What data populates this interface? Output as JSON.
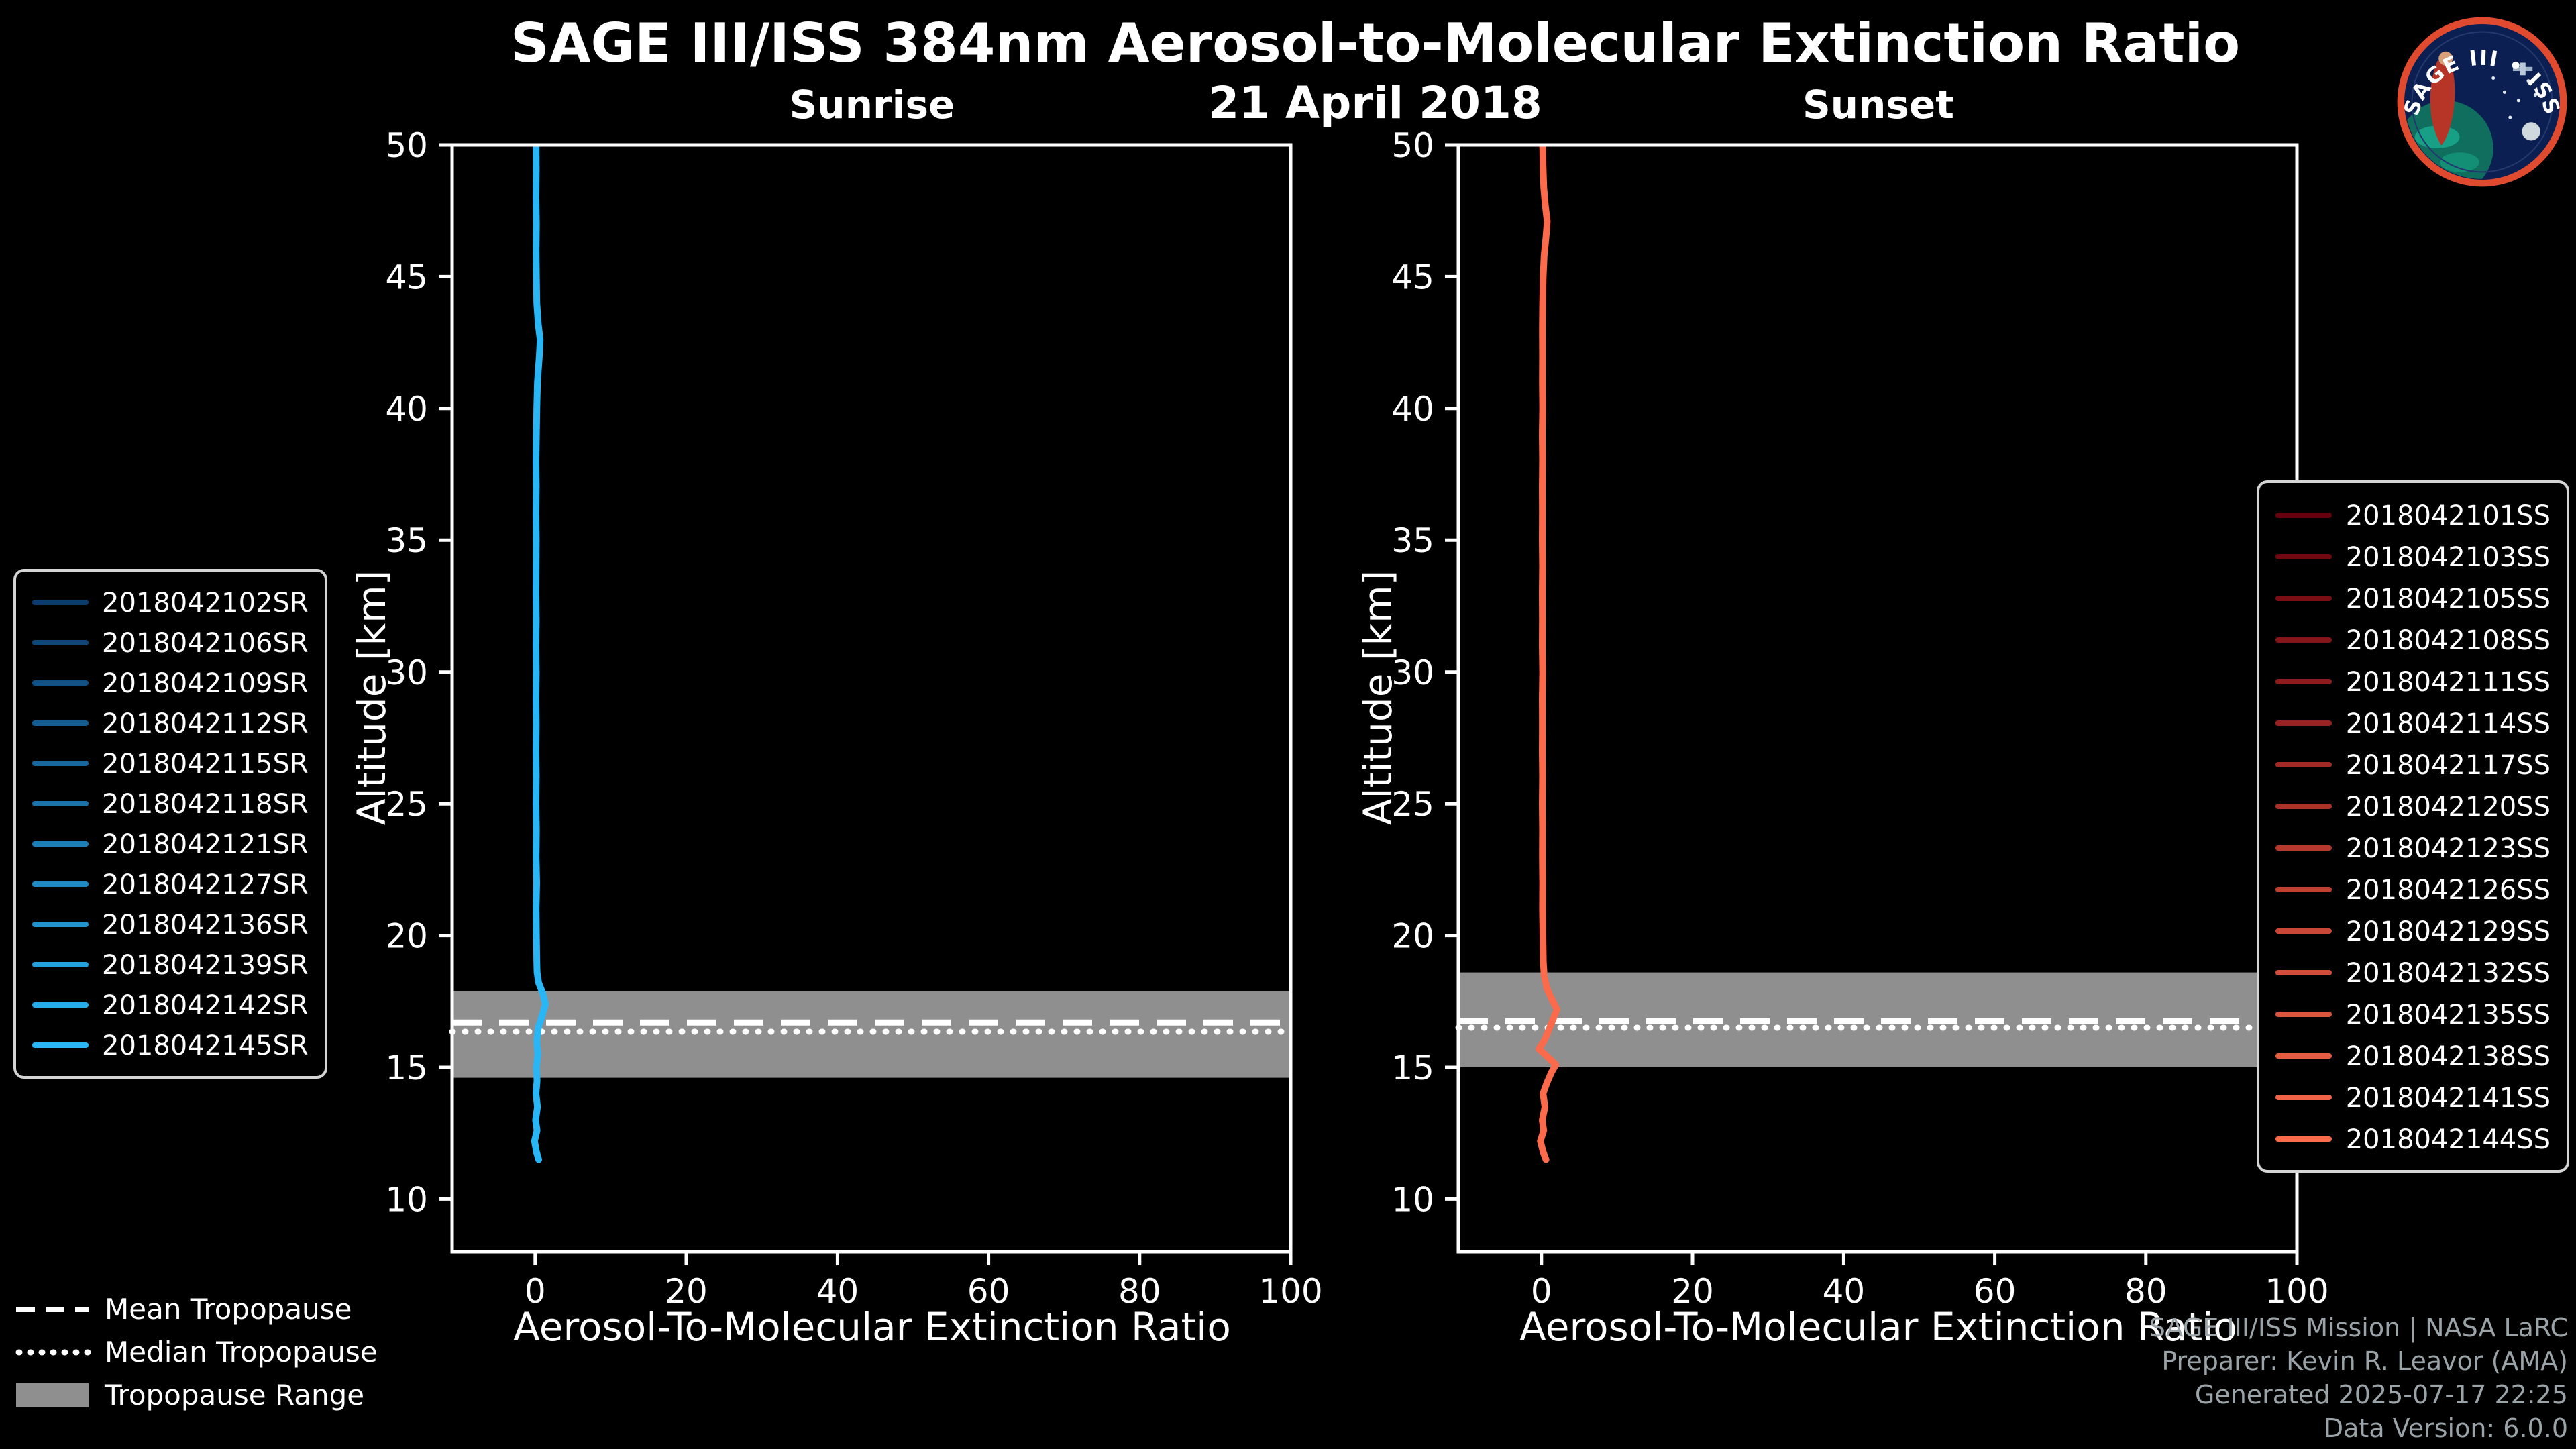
{
  "header": {
    "title": "SAGE III/ISS 384nm Aerosol-to-Molecular Extinction Ratio",
    "date": "21 April 2018"
  },
  "logo": {
    "text": "SAGE III • ISS"
  },
  "tropopause_legend": {
    "mean": "Mean Tropopause",
    "median": "Median Tropopause",
    "range": "Tropopause Range"
  },
  "footer": {
    "line1": "SAGE III/ISS Mission | NASA LaRC",
    "line2": "Preparer: Kevin R. Leavor (AMA)",
    "line3": "Generated 2025-07-17 22:25",
    "line4": "Data Version: 6.0.0"
  },
  "chart_data": [
    {
      "type": "line",
      "title": "Sunrise",
      "xlabel": "Aerosol-To-Molecular Extinction Ratio",
      "ylabel": "Altitude [km]",
      "xlim": [
        -11,
        100
      ],
      "ylim": [
        8,
        50
      ],
      "xticks": [
        0,
        20,
        40,
        60,
        80,
        100
      ],
      "yticks": [
        10,
        15,
        20,
        25,
        30,
        35,
        40,
        45,
        50
      ],
      "grid": false,
      "legend_position": "left-outside",
      "line_color": "#29b6f6",
      "tropopause": {
        "mean_km": 16.7,
        "median_km": 16.35,
        "range_km": [
          14.6,
          17.9
        ]
      },
      "legend": [
        {
          "label": "2018042102SR",
          "color": "#0d3b6b"
        },
        {
          "label": "2018042106SR",
          "color": "#104678"
        },
        {
          "label": "2018042109SR",
          "color": "#125184"
        },
        {
          "label": "2018042112SR",
          "color": "#155d91"
        },
        {
          "label": "2018042115SR",
          "color": "#17689e"
        },
        {
          "label": "2018042118SR",
          "color": "#1a73aa"
        },
        {
          "label": "2018042121SR",
          "color": "#1c7eb7"
        },
        {
          "label": "2018042127SR",
          "color": "#1f89c3"
        },
        {
          "label": "2018042136SR",
          "color": "#2194d0"
        },
        {
          "label": "2018042139SR",
          "color": "#24a0dd"
        },
        {
          "label": "2018042142SR",
          "color": "#26abe9"
        },
        {
          "label": "2018042145SR",
          "color": "#29b6f6"
        }
      ],
      "profile_alt_ratio": [
        [
          11.5,
          0.45
        ],
        [
          11.8,
          0.15
        ],
        [
          12.2,
          -0.1
        ],
        [
          12.6,
          0.25
        ],
        [
          13.0,
          0.05
        ],
        [
          13.5,
          0.3
        ],
        [
          14.0,
          0.1
        ],
        [
          14.5,
          0.25
        ],
        [
          15.0,
          0.15
        ],
        [
          15.5,
          0.35
        ],
        [
          16.0,
          0.2
        ],
        [
          16.5,
          0.4
        ],
        [
          17.0,
          0.95
        ],
        [
          17.4,
          1.35
        ],
        [
          17.8,
          1.0
        ],
        [
          18.2,
          0.45
        ],
        [
          18.6,
          0.25
        ],
        [
          19.0,
          0.2
        ],
        [
          20,
          0.15
        ],
        [
          21,
          0.12
        ],
        [
          22,
          0.18
        ],
        [
          23,
          0.12
        ],
        [
          24,
          0.15
        ],
        [
          25,
          0.1
        ],
        [
          26,
          0.14
        ],
        [
          27,
          0.1
        ],
        [
          28,
          0.13
        ],
        [
          29,
          0.1
        ],
        [
          30,
          0.14
        ],
        [
          31,
          0.1
        ],
        [
          32,
          0.13
        ],
        [
          33,
          0.1
        ],
        [
          34,
          0.12
        ],
        [
          35,
          0.14
        ],
        [
          36,
          0.1
        ],
        [
          37,
          0.13
        ],
        [
          38,
          0.1
        ],
        [
          39,
          0.16
        ],
        [
          40,
          0.2
        ],
        [
          41,
          0.3
        ],
        [
          42,
          0.55
        ],
        [
          42.6,
          0.65
        ],
        [
          43.2,
          0.4
        ],
        [
          44,
          0.2
        ],
        [
          45,
          0.15
        ],
        [
          46,
          0.12
        ],
        [
          47,
          0.15
        ],
        [
          48,
          0.1
        ],
        [
          49,
          0.14
        ],
        [
          50,
          0.12
        ]
      ]
    },
    {
      "type": "line",
      "title": "Sunset",
      "xlabel": "Aerosol-To-Molecular Extinction Ratio",
      "ylabel": "Altitude [km]",
      "xlim": [
        -11,
        100
      ],
      "ylim": [
        8,
        50
      ],
      "xticks": [
        0,
        20,
        40,
        60,
        80,
        100
      ],
      "yticks": [
        10,
        15,
        20,
        25,
        30,
        35,
        40,
        45,
        50
      ],
      "grid": false,
      "legend_position": "right-outside",
      "line_color": "#fa6a4b",
      "tropopause": {
        "mean_km": 16.75,
        "median_km": 16.5,
        "range_km": [
          15.0,
          18.6
        ]
      },
      "legend": [
        {
          "label": "2018042101SS",
          "color": "#67000d"
        },
        {
          "label": "2018042103SS",
          "color": "#710711"
        },
        {
          "label": "2018042105SS",
          "color": "#7b0e15"
        },
        {
          "label": "2018042108SS",
          "color": "#841519"
        },
        {
          "label": "2018042111SS",
          "color": "#8e1c1e"
        },
        {
          "label": "2018042114SS",
          "color": "#982322"
        },
        {
          "label": "2018042117SS",
          "color": "#a22a26"
        },
        {
          "label": "2018042120SS",
          "color": "#ac312a"
        },
        {
          "label": "2018042123SS",
          "color": "#b5392e"
        },
        {
          "label": "2018042126SS",
          "color": "#bf4032"
        },
        {
          "label": "2018042129SS",
          "color": "#c94736"
        },
        {
          "label": "2018042132SS",
          "color": "#d34e3a"
        },
        {
          "label": "2018042135SS",
          "color": "#dc553e"
        },
        {
          "label": "2018042138SS",
          "color": "#e65c43"
        },
        {
          "label": "2018042141SS",
          "color": "#f06347"
        },
        {
          "label": "2018042144SS",
          "color": "#fa6a4b"
        }
      ],
      "profile_alt_ratio": [
        [
          11.5,
          0.6
        ],
        [
          11.8,
          0.2
        ],
        [
          12.2,
          -0.15
        ],
        [
          12.6,
          0.3
        ],
        [
          13.0,
          0.1
        ],
        [
          13.5,
          0.45
        ],
        [
          14.0,
          0.2
        ],
        [
          14.4,
          0.7
        ],
        [
          14.8,
          1.3
        ],
        [
          15.1,
          1.9
        ],
        [
          15.4,
          0.8
        ],
        [
          15.7,
          -0.35
        ],
        [
          16.0,
          0.35
        ],
        [
          16.4,
          0.95
        ],
        [
          16.8,
          1.5
        ],
        [
          17.2,
          2.05
        ],
        [
          17.6,
          1.35
        ],
        [
          18.0,
          0.7
        ],
        [
          18.5,
          0.35
        ],
        [
          19,
          0.25
        ],
        [
          20,
          0.18
        ],
        [
          21,
          0.14
        ],
        [
          22,
          0.16
        ],
        [
          23,
          0.12
        ],
        [
          24,
          0.14
        ],
        [
          25,
          0.1
        ],
        [
          26,
          0.13
        ],
        [
          27,
          0.1
        ],
        [
          28,
          0.12
        ],
        [
          29,
          0.1
        ],
        [
          30,
          0.15
        ],
        [
          31,
          0.1
        ],
        [
          32,
          0.12
        ],
        [
          33,
          0.1
        ],
        [
          34,
          0.13
        ],
        [
          35,
          0.1
        ],
        [
          36,
          0.12
        ],
        [
          37,
          0.1
        ],
        [
          38,
          0.13
        ],
        [
          39,
          0.1
        ],
        [
          40,
          0.15
        ],
        [
          41,
          0.12
        ],
        [
          42,
          0.14
        ],
        [
          43,
          0.12
        ],
        [
          44,
          0.16
        ],
        [
          45,
          0.22
        ],
        [
          45.8,
          0.35
        ],
        [
          46.5,
          0.6
        ],
        [
          47.1,
          0.75
        ],
        [
          47.7,
          0.5
        ],
        [
          48.4,
          0.3
        ],
        [
          49.2,
          0.2
        ],
        [
          50,
          0.15
        ]
      ]
    }
  ]
}
